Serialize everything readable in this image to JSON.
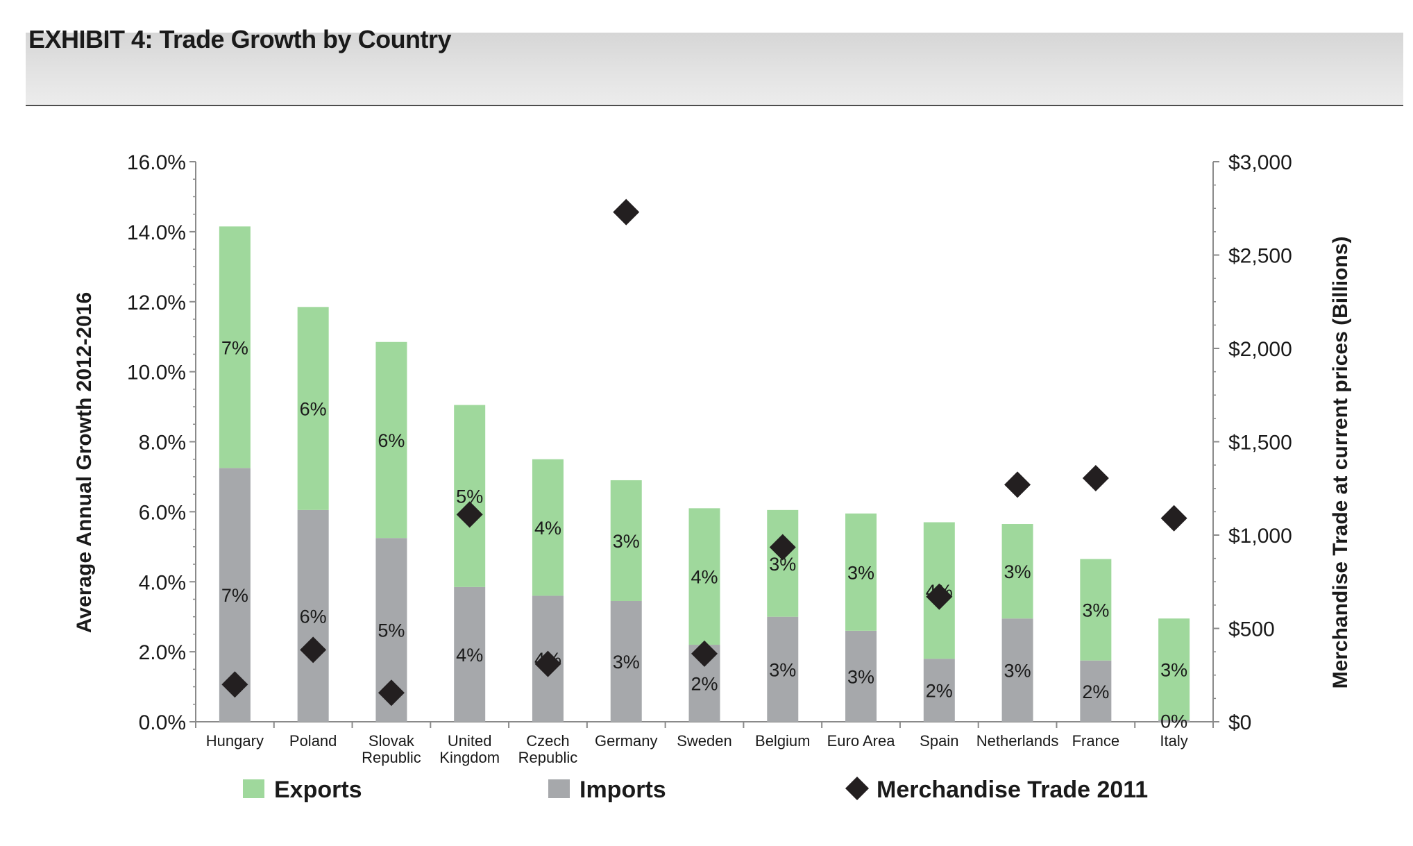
{
  "header": {
    "title": "EXHIBIT 4: Trade Growth by Country"
  },
  "chart_data": {
    "type": "bar",
    "stacked": true,
    "title": "EXHIBIT 4: Trade Growth by Country",
    "ylabel": "Average Annual Growth 2012-2016",
    "y2label": "Merchandise Trade at current prices (Billions)",
    "ylim": [
      0,
      16
    ],
    "y2lim": [
      0,
      3000
    ],
    "y_ticks": [
      "0.0%",
      "2.0%",
      "4.0%",
      "6.0%",
      "8.0%",
      "10.0%",
      "12.0%",
      "14.0%",
      "16.0%"
    ],
    "y2_ticks": [
      "$0",
      "$500",
      "$1,000",
      "$1,500",
      "$2,000",
      "$2,500",
      "$3,000"
    ],
    "categories": [
      [
        "Hungary"
      ],
      [
        "Poland"
      ],
      [
        "Slovak",
        "Republic"
      ],
      [
        "United",
        "Kingdom"
      ],
      [
        "Czech",
        "Republic"
      ],
      [
        "Germany"
      ],
      [
        "Sweden"
      ],
      [
        "Belgium"
      ],
      [
        "Euro Area"
      ],
      [
        "Spain"
      ],
      [
        "Netherlands"
      ],
      [
        "France"
      ],
      [
        "Italy"
      ]
    ],
    "series": [
      {
        "name": "Imports",
        "color": "#a6a8ab",
        "values": [
          7.25,
          6.05,
          5.25,
          3.85,
          3.6,
          3.45,
          2.2,
          3.0,
          2.6,
          1.8,
          2.95,
          1.75,
          0.05
        ],
        "labels": [
          "7%",
          "6%",
          "5%",
          "4%",
          "4%",
          "3%",
          "2%",
          "3%",
          "3%",
          "2%",
          "3%",
          "2%",
          "0%"
        ]
      },
      {
        "name": "Exports",
        "color": "#9fd89c",
        "values": [
          6.9,
          5.8,
          5.6,
          5.2,
          3.9,
          3.45,
          3.9,
          3.05,
          3.35,
          3.9,
          2.7,
          2.9,
          2.9
        ],
        "labels": [
          "7%",
          "6%",
          "6%",
          "5%",
          "4%",
          "3%",
          "4%",
          "3%",
          "3%",
          "4%",
          "3%",
          "3%",
          "3%"
        ]
      }
    ],
    "secondary_series": {
      "name": "Merchandise Trade 2011",
      "type": "scatter",
      "marker": "diamond",
      "color": "#231f20",
      "axis": "right",
      "values": [
        200,
        385,
        155,
        1110,
        310,
        2730,
        365,
        935,
        null,
        670,
        1270,
        1305,
        1090
      ]
    },
    "legend": {
      "position": "bottom",
      "items": [
        {
          "label": "Exports",
          "color": "#9fd89c",
          "marker": "square"
        },
        {
          "label": "Imports",
          "color": "#a6a8ab",
          "marker": "square"
        },
        {
          "label": "Merchandise Trade 2011",
          "color": "#231f20",
          "marker": "diamond"
        }
      ]
    }
  }
}
